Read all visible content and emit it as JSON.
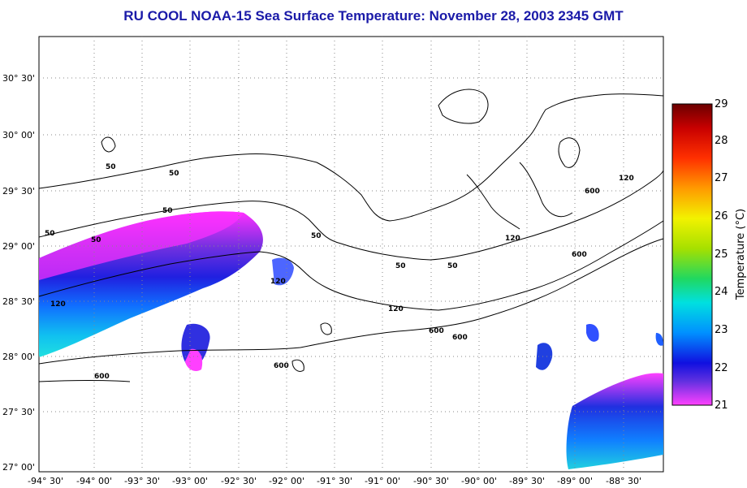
{
  "title": "RU COOL  NOAA-15  Sea Surface Temperature:  November 28, 2003 2345 GMT",
  "colorbar": {
    "label": "Temperature (°C)",
    "ticks": [
      "29",
      "28",
      "27",
      "26",
      "25",
      "24",
      "23",
      "22",
      "21"
    ],
    "min": 21,
    "max": 29
  },
  "axes": {
    "lat_ticks": [
      "30° 30'",
      "30° 00'",
      "29° 30'",
      "29° 00'",
      "28° 30'",
      "28° 00'",
      "27° 30'",
      "27° 00'"
    ],
    "lon_ticks": [
      "-94° 30'",
      "-94° 00'",
      "-93° 30'",
      "-93° 00'",
      "-92° 30'",
      "-92° 00'",
      "-91° 30'",
      "-91° 00'",
      "-90° 30'",
      "-90° 00'",
      "-89° 30'",
      "-89° 00'",
      "-88° 30'"
    ]
  },
  "contour_labels": [
    "50",
    "50",
    "50",
    "50",
    "50",
    "50",
    "50",
    "50",
    "120",
    "120",
    "120",
    "120",
    "120",
    "600",
    "600",
    "600",
    "600",
    "600",
    "600"
  ],
  "colors": {
    "title": "#1a1aa8"
  }
}
